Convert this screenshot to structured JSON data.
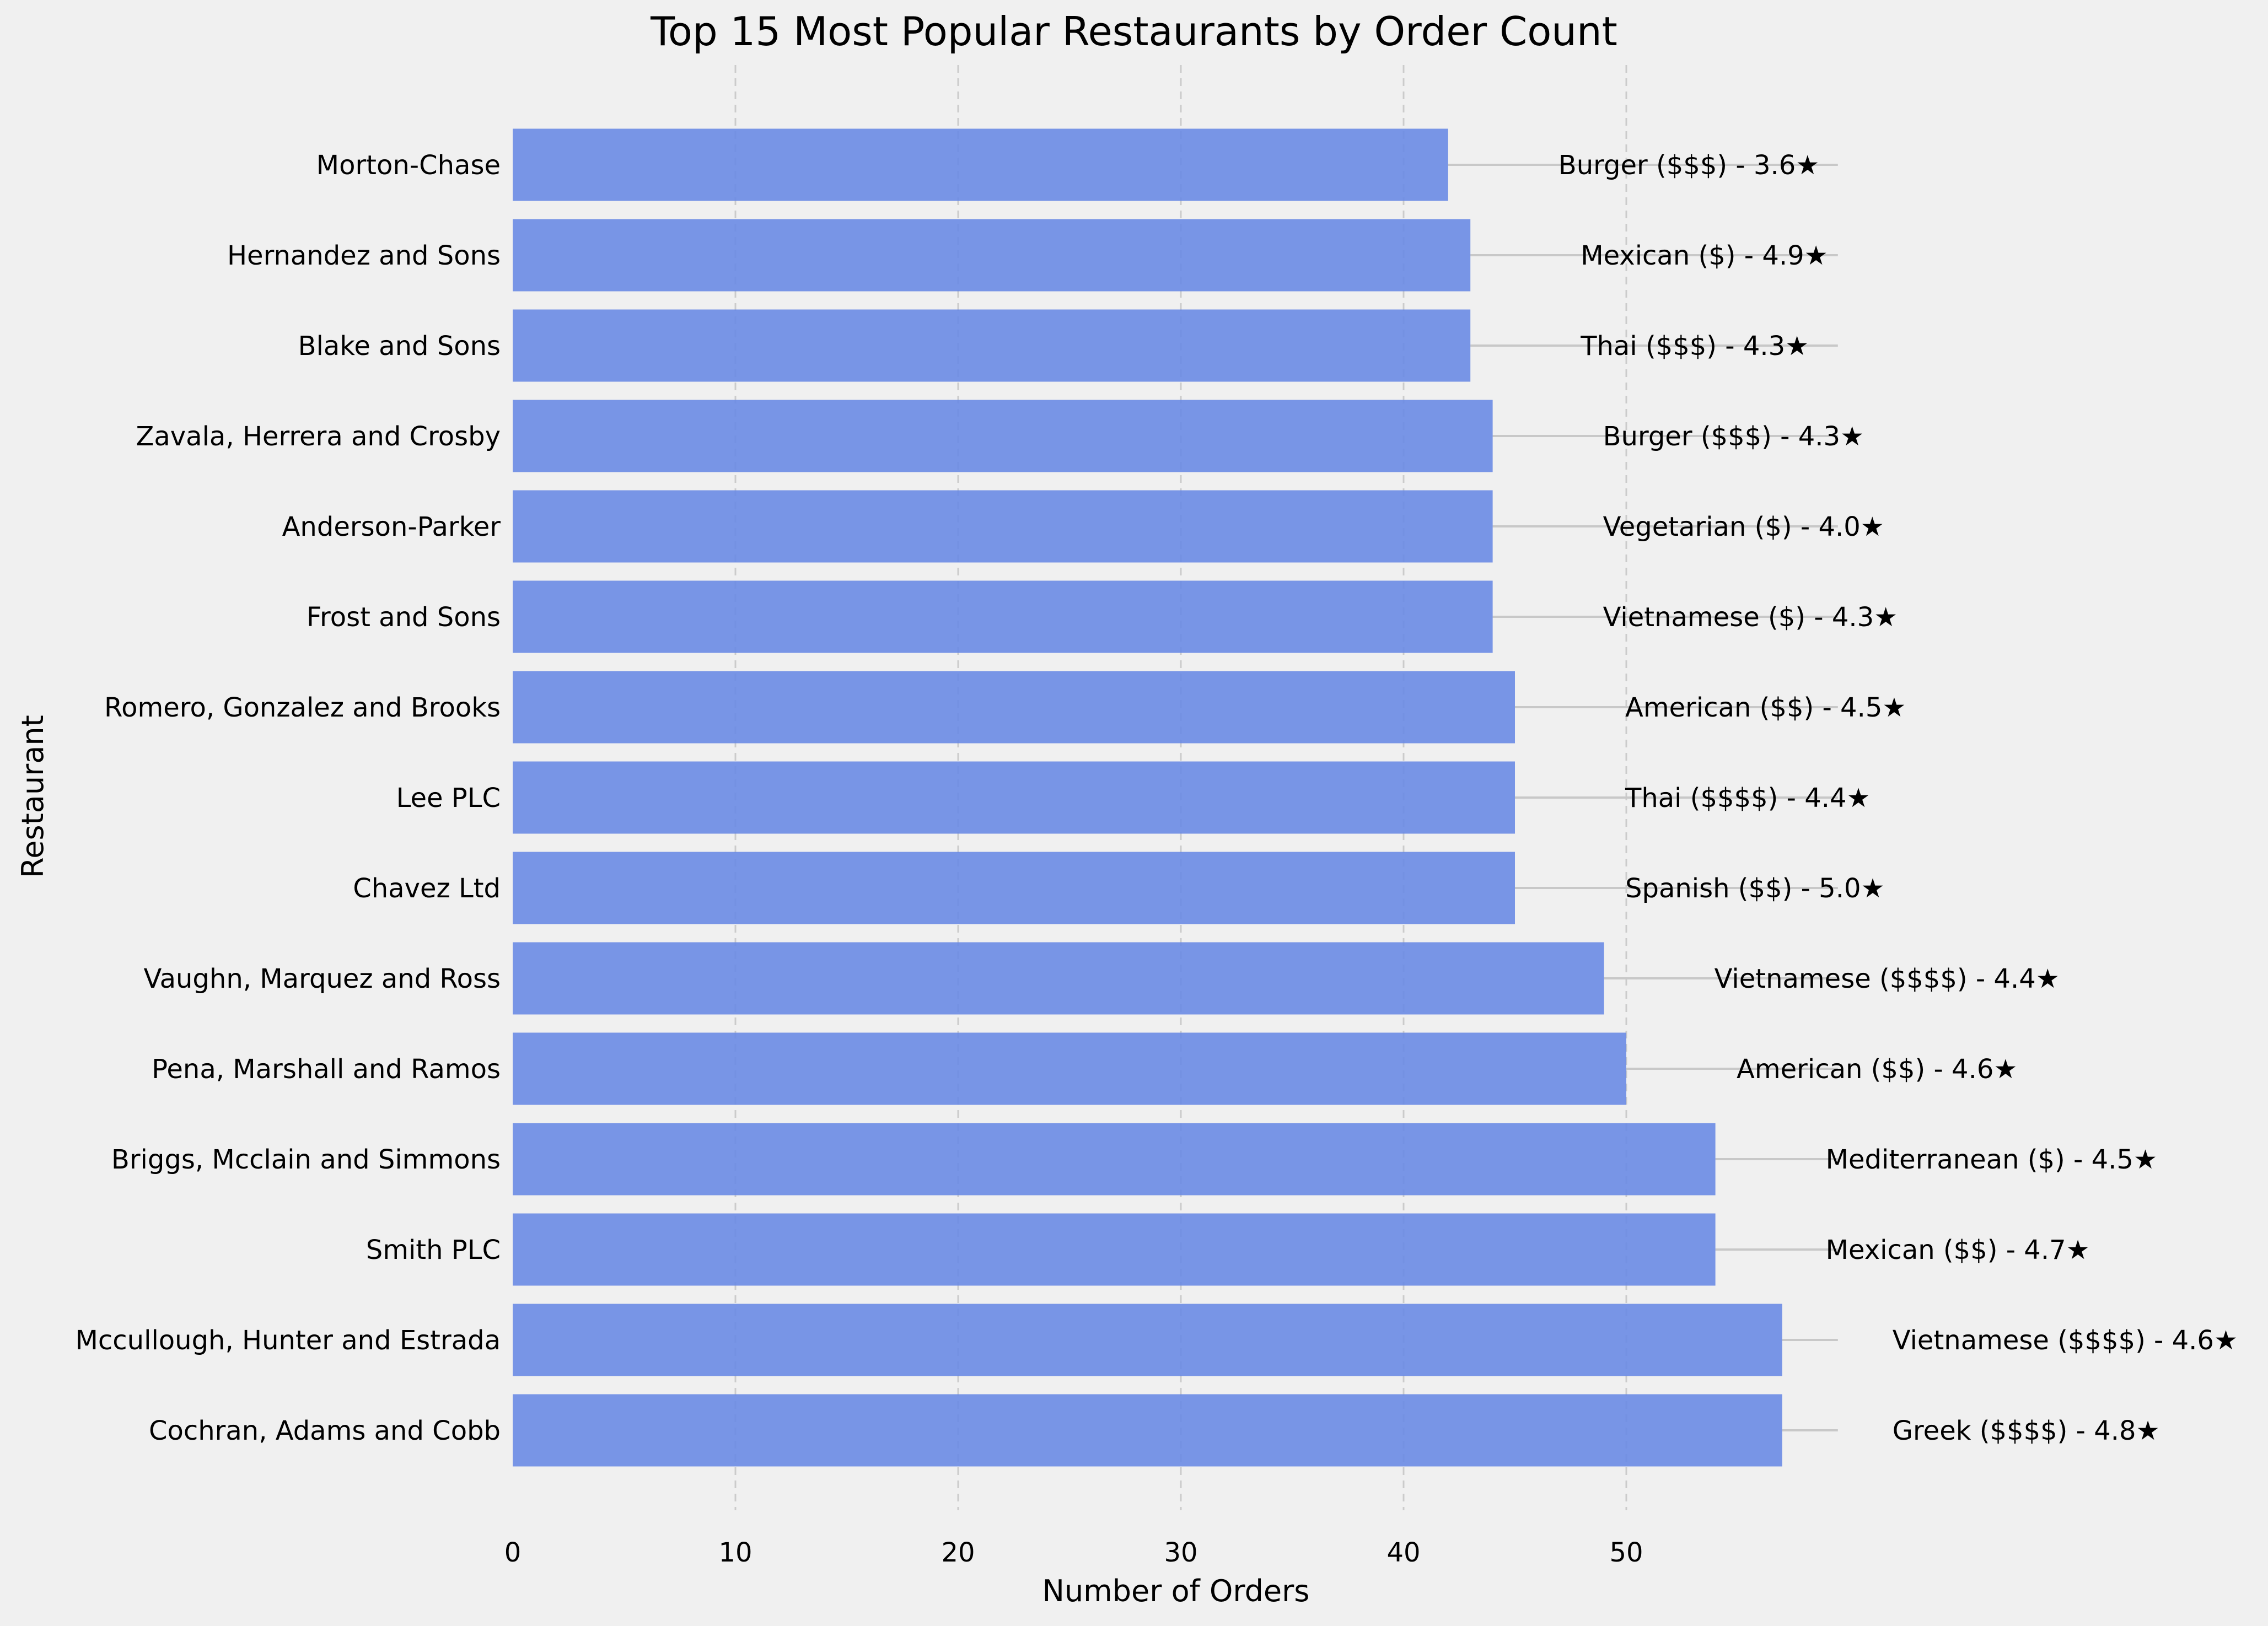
{
  "chart_data": {
    "type": "bar",
    "orientation": "horizontal",
    "title": "Top 15 Most Popular Restaurants by Order Count",
    "xlabel": "Number of Orders",
    "ylabel": "Restaurant",
    "xlim": [
      0,
      60
    ],
    "x_ticks": [
      0,
      10,
      20,
      30,
      40,
      50
    ],
    "grid": "vertical dashed",
    "legend": "none",
    "bar_color": "#6a8be4",
    "annotation_line_end": 59.5,
    "categories": [
      "Cochran, Adams and Cobb",
      "Mccullough, Hunter and Estrada",
      "Smith PLC",
      "Briggs, Mcclain and Simmons",
      "Pena, Marshall and Ramos",
      "Vaughn, Marquez and Ross",
      "Chavez Ltd",
      "Lee PLC",
      "Romero, Gonzalez and Brooks",
      "Frost and Sons",
      "Anderson-Parker",
      "Zavala, Herrera and Crosby",
      "Blake and Sons",
      "Hernandez and Sons",
      "Morton-Chase"
    ],
    "values": [
      57,
      57,
      54,
      54,
      50,
      49,
      45,
      45,
      45,
      44,
      44,
      44,
      43,
      43,
      42
    ],
    "annotations": [
      "Greek ($$$$) - 4.8★",
      "Vietnamese ($$$$) - 4.6★",
      "Mexican ($$) - 4.7★",
      "Mediterranean ($) - 4.5★",
      "American ($$) - 4.6★",
      "Vietnamese ($$$$) - 4.4★",
      "Spanish ($$) - 5.0★",
      "Thai ($$$$) - 4.4★",
      "American ($$) - 4.5★",
      "Vietnamese ($) - 4.3★",
      "Vegetarian ($) - 4.0★",
      "Burger ($$$) - 4.3★",
      "Thai ($$$) - 4.3★",
      "Mexican ($) - 4.9★",
      "Burger ($$$) - 3.6★"
    ]
  }
}
